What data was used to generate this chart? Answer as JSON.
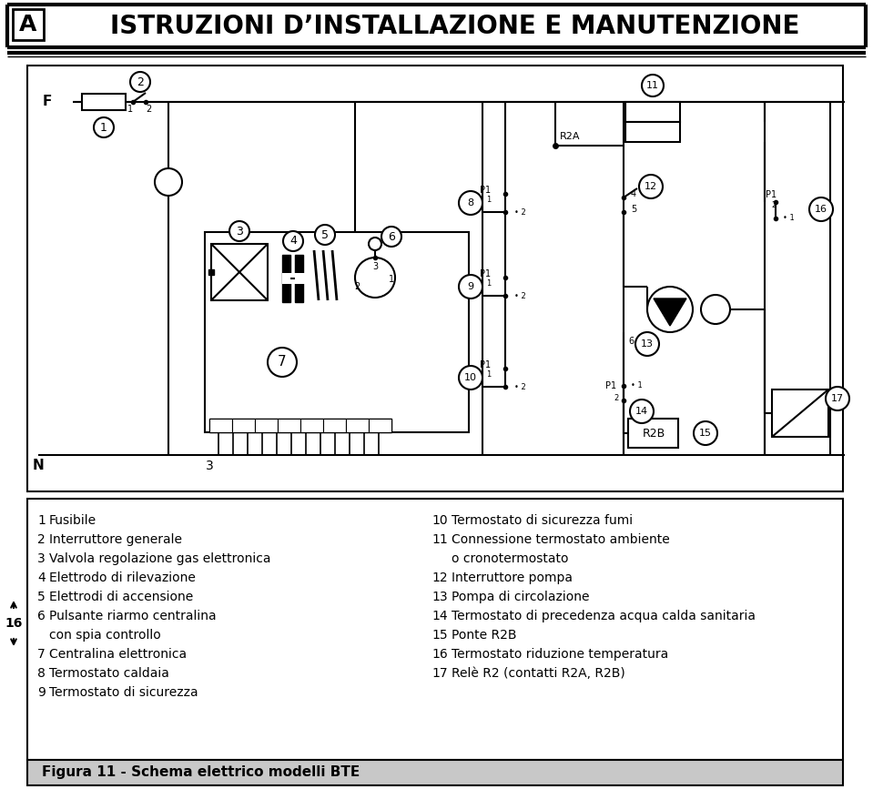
{
  "title_letter": "A",
  "title_text": "ISTRUZIONI D’INSTALLAZIONE E MANUTENZIONE",
  "footer_bg": "#c8c8c8",
  "footer_text": "Figura 11 - Schema elettrico modelli BTE",
  "left_items": [
    [
      "1",
      "Fusibile"
    ],
    [
      "2",
      "Interruttore generale"
    ],
    [
      "3",
      "Valvola regolazione gas elettronica"
    ],
    [
      "4",
      "Elettrodo di rilevazione"
    ],
    [
      "5",
      "Elettrodi di accensione"
    ],
    [
      "6",
      "Pulsante riarmo centralina"
    ],
    [
      "",
      "con spia controllo"
    ],
    [
      "7",
      "Centralina elettronica"
    ],
    [
      "8",
      "Termostato caldaia"
    ],
    [
      "9",
      "Termostato di sicurezza"
    ]
  ],
  "right_items": [
    [
      "10",
      "Termostato di sicurezza fumi"
    ],
    [
      "11",
      "Connessione termostato ambiente"
    ],
    [
      "",
      "o cronotermostato"
    ],
    [
      "12",
      "Interruttore pompa"
    ],
    [
      "13",
      "Pompa di circolazione"
    ],
    [
      "14",
      "Termostato di precedenza acqua calda sanitaria"
    ],
    [
      "15",
      "Ponte R2B"
    ],
    [
      "16",
      "Termostato riduzione temperatura"
    ],
    [
      "17",
      "Relè R2 (contatti R2A, R2B)"
    ]
  ],
  "side_label": "16"
}
